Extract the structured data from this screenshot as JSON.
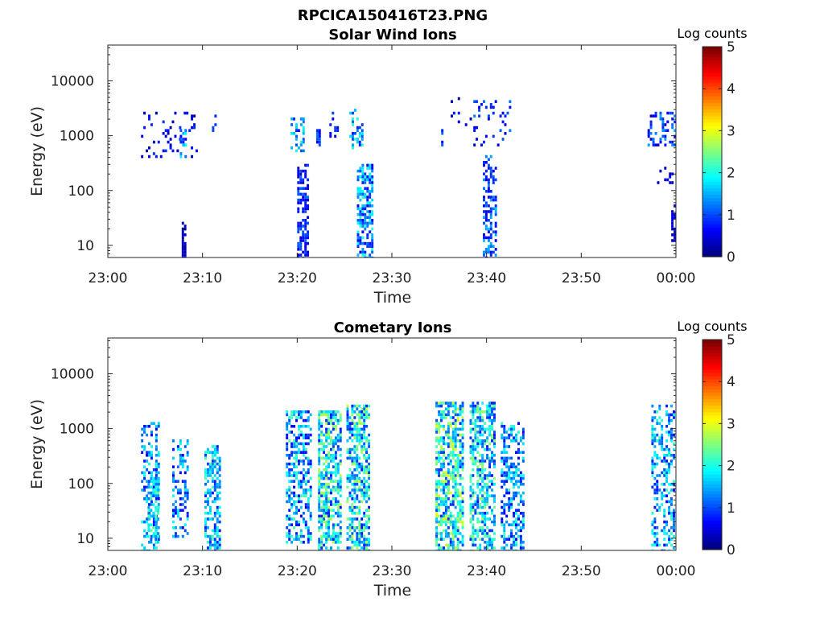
{
  "figure_title": "RPCICA150416T23.PNG",
  "colors": {
    "colormap": [
      "#00007f",
      "#0000ff",
      "#007fff",
      "#00ffff",
      "#7fff7f",
      "#ffff00",
      "#ff7f00",
      "#ff0000",
      "#7f0000"
    ]
  },
  "chart_data": [
    {
      "type": "heatmap",
      "title": "Solar Wind Ions",
      "xlabel": "Time",
      "ylabel": "Energy (eV)",
      "x_ticks": [
        "23:00",
        "23:10",
        "23:20",
        "23:30",
        "23:40",
        "23:50",
        "00:00"
      ],
      "y_ticks": [
        "10",
        "100",
        "1000",
        "10000"
      ],
      "y_scale": "log",
      "xlim_minutes": [
        0,
        60
      ],
      "ylim_eV": [
        6,
        45000
      ],
      "colorbar": {
        "label": "Log counts",
        "ticks": [
          "0",
          "1",
          "2",
          "3",
          "4",
          "5"
        ],
        "range": [
          0,
          5
        ]
      },
      "clusters": [
        {
          "t": [
            7.8,
            8.3
          ],
          "e": [
            6,
            25
          ],
          "v": [
            0.1,
            0.4
          ],
          "d": 0.9
        },
        {
          "t": [
            3.5,
            9.5
          ],
          "e": [
            400,
            3000
          ],
          "v": [
            0.2,
            0.9
          ],
          "d": 0.1
        },
        {
          "t": [
            7.6,
            8.2
          ],
          "e": [
            400,
            1200
          ],
          "v": [
            0.5,
            2.0
          ],
          "d": 0.45
        },
        {
          "t": [
            11.0,
            11.5
          ],
          "e": [
            1200,
            2600
          ],
          "v": [
            0.4,
            1.0
          ],
          "d": 0.25
        },
        {
          "t": [
            19.3,
            20.6
          ],
          "e": [
            500,
            2000
          ],
          "v": [
            0.7,
            2.1
          ],
          "d": 0.45
        },
        {
          "t": [
            20.0,
            21.2
          ],
          "e": [
            6,
            300
          ],
          "v": [
            0.3,
            1.2
          ],
          "d": 0.55
        },
        {
          "t": [
            22.0,
            22.5
          ],
          "e": [
            700,
            1200
          ],
          "v": [
            0.5,
            1.2
          ],
          "d": 0.7
        },
        {
          "t": [
            23.4,
            24.4
          ],
          "e": [
            1000,
            2500
          ],
          "v": [
            0.3,
            1.0
          ],
          "d": 0.2
        },
        {
          "t": [
            25.5,
            26.8
          ],
          "e": [
            600,
            3000
          ],
          "v": [
            0.7,
            2.2
          ],
          "d": 0.45
        },
        {
          "t": [
            26.3,
            27.9
          ],
          "e": [
            6,
            300
          ],
          "v": [
            0.5,
            2.1
          ],
          "d": 0.65
        },
        {
          "t": [
            35.2,
            35.4
          ],
          "e": [
            700,
            1300
          ],
          "v": [
            0.6,
            1.4
          ],
          "d": 0.8
        },
        {
          "t": [
            36.2,
            38.8
          ],
          "e": [
            1500,
            4500
          ],
          "v": [
            0.2,
            0.8
          ],
          "d": 0.1
        },
        {
          "t": [
            38.6,
            42.5
          ],
          "e": [
            700,
            4000
          ],
          "v": [
            0.4,
            1.3
          ],
          "d": 0.2
        },
        {
          "t": [
            39.6,
            40.9
          ],
          "e": [
            6,
            400
          ],
          "v": [
            0.4,
            1.6
          ],
          "d": 0.5
        },
        {
          "t": [
            57.0,
            59.8
          ],
          "e": [
            700,
            2500
          ],
          "v": [
            0.4,
            1.5
          ],
          "d": 0.35
        },
        {
          "t": [
            58.0,
            59.6
          ],
          "e": [
            100,
            250
          ],
          "v": [
            0.2,
            0.8
          ],
          "d": 0.15
        },
        {
          "t": [
            59.5,
            59.8
          ],
          "e": [
            12,
            50
          ],
          "v": [
            0.2,
            0.6
          ],
          "d": 0.6
        }
      ]
    },
    {
      "type": "heatmap",
      "title": "Cometary Ions",
      "xlabel": "Time",
      "ylabel": "Energy (eV)",
      "x_ticks": [
        "23:00",
        "23:10",
        "23:20",
        "23:30",
        "23:40",
        "23:50",
        "00:00"
      ],
      "y_ticks": [
        "10",
        "100",
        "1000",
        "10000"
      ],
      "y_scale": "log",
      "xlim_minutes": [
        0,
        60
      ],
      "ylim_eV": [
        6,
        45000
      ],
      "colorbar": {
        "label": "Log counts",
        "ticks": [
          "0",
          "1",
          "2",
          "3",
          "4",
          "5"
        ],
        "range": [
          0,
          5
        ]
      },
      "clusters": [
        {
          "t": [
            3.5,
            5.4
          ],
          "e": [
            6,
            1300
          ],
          "v": [
            0.5,
            2.0
          ],
          "d": 0.35
        },
        {
          "t": [
            4.2,
            5.4
          ],
          "e": [
            8,
            120
          ],
          "v": [
            1.0,
            2.4
          ],
          "d": 0.6
        },
        {
          "t": [
            6.8,
            8.4
          ],
          "e": [
            10,
            600
          ],
          "v": [
            0.5,
            2.0
          ],
          "d": 0.4
        },
        {
          "t": [
            10.2,
            11.8
          ],
          "e": [
            6,
            450
          ],
          "v": [
            0.7,
            2.3
          ],
          "d": 0.6
        },
        {
          "t": [
            18.8,
            21.5
          ],
          "e": [
            8,
            2000
          ],
          "v": [
            0.5,
            2.3
          ],
          "d": 0.5
        },
        {
          "t": [
            22.2,
            24.6
          ],
          "e": [
            6,
            2000
          ],
          "v": [
            0.7,
            2.8
          ],
          "d": 0.6
        },
        {
          "t": [
            25.2,
            27.6
          ],
          "e": [
            6,
            2500
          ],
          "v": [
            0.7,
            2.8
          ],
          "d": 0.6
        },
        {
          "t": [
            34.6,
            37.6
          ],
          "e": [
            6,
            2800
          ],
          "v": [
            0.8,
            3.0
          ],
          "d": 0.65
        },
        {
          "t": [
            38.2,
            40.8
          ],
          "e": [
            6,
            2800
          ],
          "v": [
            0.7,
            2.6
          ],
          "d": 0.6
        },
        {
          "t": [
            41.5,
            43.8
          ],
          "e": [
            6,
            1300
          ],
          "v": [
            0.5,
            2.2
          ],
          "d": 0.5
        },
        {
          "t": [
            57.4,
            59.7
          ],
          "e": [
            6,
            2500
          ],
          "v": [
            0.6,
            2.2
          ],
          "d": 0.45
        }
      ]
    }
  ]
}
